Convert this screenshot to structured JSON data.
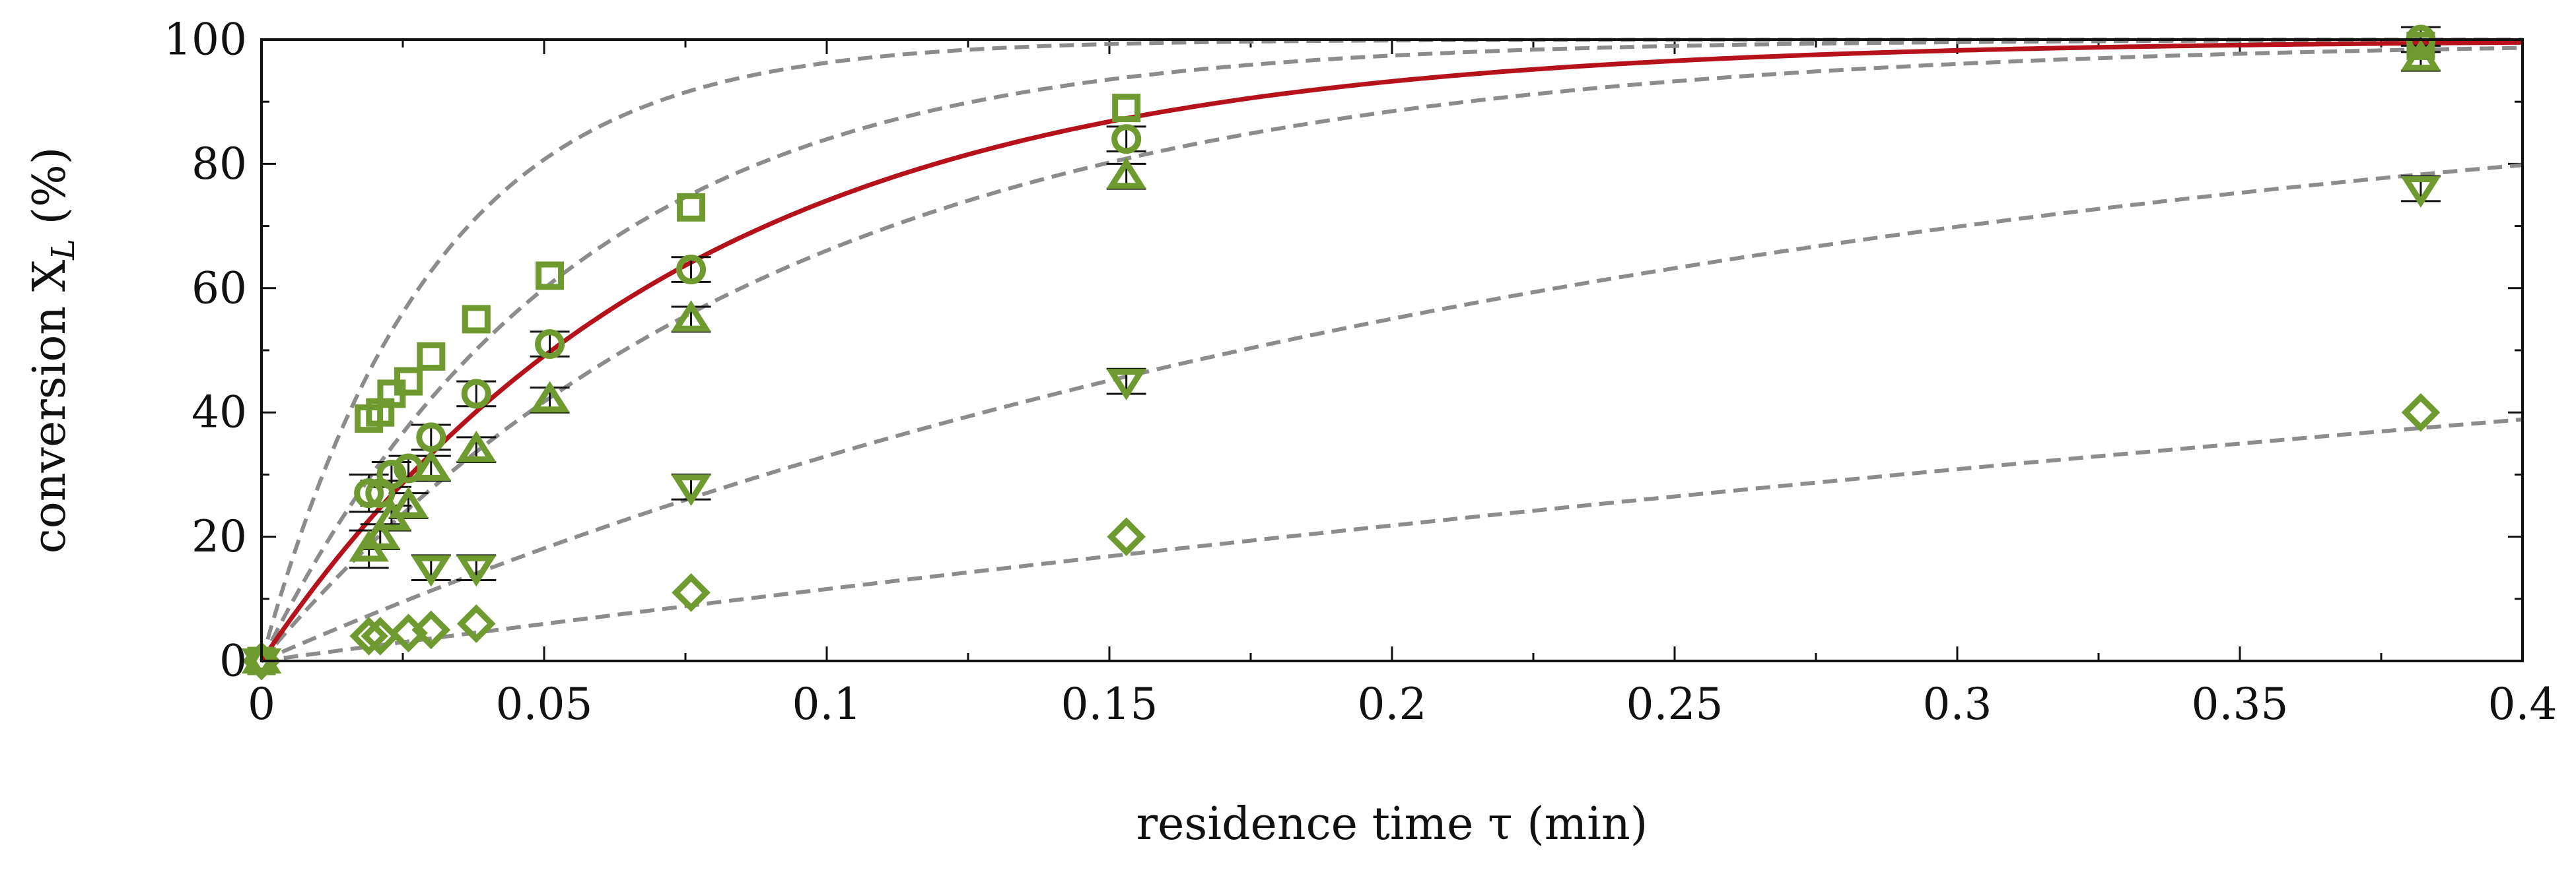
{
  "chart_data": {
    "type": "scatter",
    "xlabel": "residence time τ (min)",
    "ylabel_main": "conversion X",
    "ylabel_sub": "L",
    "ylabel_suffix": " (%)",
    "xlim": [
      0,
      0.4
    ],
    "ylim": [
      0,
      100
    ],
    "x_ticks": [
      0,
      0.05,
      0.1,
      0.15,
      0.2,
      0.25,
      0.3,
      0.35,
      0.4
    ],
    "x_tick_labels": [
      "0",
      "0.05",
      "0.1",
      "0.15",
      "0.2",
      "0.25",
      "0.3",
      "0.35",
      "0.4"
    ],
    "y_ticks": [
      0,
      20,
      40,
      60,
      80,
      100
    ],
    "y_tick_labels": [
      "0",
      "20",
      "40",
      "60",
      "80",
      "100"
    ],
    "grid": false,
    "colors": {
      "marker": "#6e9a2f",
      "model": "#8c8c8c",
      "fit": "#b5121b",
      "axis": "#111111"
    },
    "series": [
      {
        "name": "square",
        "marker": "square",
        "x": [
          0,
          0.019,
          0.021,
          0.023,
          0.026,
          0.03,
          0.038,
          0.051,
          0.076,
          0.153,
          0.382
        ],
        "y": [
          0,
          39,
          40,
          43,
          45,
          49,
          55,
          62,
          73,
          89,
          99
        ]
      },
      {
        "name": "circle",
        "marker": "circle",
        "x": [
          0,
          0.019,
          0.021,
          0.023,
          0.026,
          0.03,
          0.038,
          0.051,
          0.076,
          0.153,
          0.382
        ],
        "y": [
          0,
          27,
          27,
          30,
          31,
          36,
          43,
          51,
          63,
          84,
          100
        ],
        "err": [
          0,
          3,
          2,
          2,
          2,
          2,
          2,
          2,
          2,
          2,
          2
        ]
      },
      {
        "name": "triangle-up",
        "marker": "triangle-up",
        "x": [
          0,
          0.019,
          0.021,
          0.023,
          0.026,
          0.03,
          0.038,
          0.051,
          0.076,
          0.153,
          0.382
        ],
        "y": [
          0,
          18,
          20,
          23,
          25,
          31,
          34,
          42,
          55,
          78,
          97
        ],
        "err": [
          0,
          3,
          2,
          2,
          2,
          2,
          2,
          2,
          2,
          2,
          2
        ]
      },
      {
        "name": "triangle-down",
        "marker": "triangle-down",
        "x": [
          0,
          0.03,
          0.038,
          0.076,
          0.153,
          0.382
        ],
        "y": [
          0,
          15,
          15,
          28,
          45,
          76
        ],
        "err": [
          0,
          2,
          2,
          2,
          2,
          2
        ]
      },
      {
        "name": "diamond",
        "marker": "diamond",
        "x": [
          0,
          0.019,
          0.021,
          0.026,
          0.03,
          0.038,
          0.076,
          0.153,
          0.382
        ],
        "y": [
          0,
          4,
          4,
          4.5,
          5,
          6,
          11,
          20,
          40
        ]
      }
    ],
    "model_curves": [
      {
        "name": "model-1",
        "style": "dashed",
        "k": 32.9
      },
      {
        "name": "model-2",
        "style": "dashed",
        "k": 18.3
      },
      {
        "name": "model-3",
        "style": "dashed",
        "k": 10.8
      },
      {
        "name": "model-4",
        "style": "dashed",
        "k": 4.0
      },
      {
        "name": "model-5",
        "style": "dashed",
        "k": 1.23
      }
    ],
    "fit_curve": {
      "name": "fit",
      "style": "solid",
      "k": 13.5
    }
  }
}
